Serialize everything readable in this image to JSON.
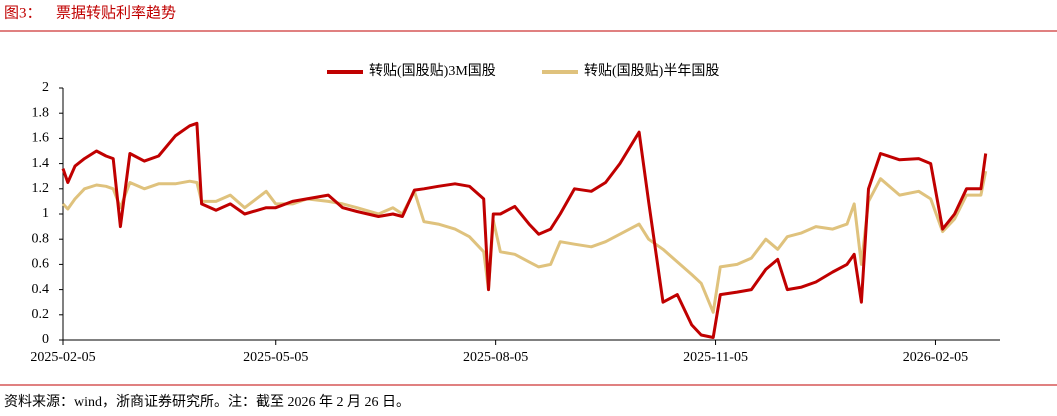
{
  "chart_data": {
    "type": "line",
    "figure_label": "图3：",
    "title": "票据转贴利率趋势",
    "source": "资料来源：wind，浙商证券研究所。注：截至 2026 年 2 月 26 日。",
    "x": [
      "2025-02-05",
      "2025-02-07",
      "2025-02-10",
      "2025-02-14",
      "2025-02-19",
      "2025-02-23",
      "2025-02-26",
      "2025-03-01",
      "2025-03-05",
      "2025-03-11",
      "2025-03-17",
      "2025-03-24",
      "2025-03-30",
      "2025-04-02",
      "2025-04-04",
      "2025-04-10",
      "2025-04-16",
      "2025-04-22",
      "2025-05-01",
      "2025-05-05",
      "2025-05-12",
      "2025-05-18",
      "2025-05-27",
      "2025-06-02",
      "2025-06-08",
      "2025-06-17",
      "2025-06-23",
      "2025-06-27",
      "2025-07-02",
      "2025-07-06",
      "2025-07-12",
      "2025-07-19",
      "2025-07-25",
      "2025-07-31",
      "2025-08-02",
      "2025-08-04",
      "2025-08-07",
      "2025-08-13",
      "2025-08-19",
      "2025-08-23",
      "2025-08-28",
      "2025-09-01",
      "2025-09-07",
      "2025-09-14",
      "2025-09-20",
      "2025-09-26",
      "2025-10-04",
      "2025-10-08",
      "2025-10-14",
      "2025-10-20",
      "2025-10-26",
      "2025-10-30",
      "2025-11-04",
      "2025-11-07",
      "2025-11-14",
      "2025-11-20",
      "2025-11-26",
      "2025-12-01",
      "2025-12-05",
      "2025-12-11",
      "2025-12-17",
      "2025-12-24",
      "2025-12-30",
      "2026-01-02",
      "2026-01-05",
      "2026-01-08",
      "2026-01-13",
      "2026-01-21",
      "2026-01-29",
      "2026-02-03",
      "2026-02-08",
      "2026-02-13",
      "2026-02-18",
      "2026-02-20",
      "2026-02-24",
      "2026-02-26"
    ],
    "series": [
      {
        "name": "转贴(国股贴)3M国股",
        "color": "#c00000",
        "values": [
          1.36,
          1.25,
          1.38,
          1.44,
          1.5,
          1.46,
          1.44,
          0.9,
          1.48,
          1.42,
          1.46,
          1.62,
          1.7,
          1.72,
          1.08,
          1.03,
          1.08,
          1.0,
          1.05,
          1.05,
          1.1,
          1.12,
          1.15,
          1.05,
          1.02,
          0.98,
          1.0,
          0.98,
          1.19,
          1.2,
          1.22,
          1.24,
          1.22,
          1.12,
          0.4,
          1.0,
          1.0,
          1.06,
          0.92,
          0.84,
          0.88,
          1.0,
          1.2,
          1.18,
          1.25,
          1.4,
          1.65,
          1.1,
          0.3,
          0.36,
          0.12,
          0.04,
          0.02,
          0.36,
          0.38,
          0.4,
          0.56,
          0.64,
          0.4,
          0.42,
          0.46,
          0.54,
          0.6,
          0.68,
          0.3,
          1.2,
          1.48,
          1.43,
          1.44,
          1.4,
          0.88,
          1.0,
          1.2,
          1.2,
          1.2,
          1.48
        ]
      },
      {
        "name": "转贴(国股贴)半年国股",
        "color": "#dfc27d",
        "values": [
          1.08,
          1.04,
          1.12,
          1.2,
          1.23,
          1.22,
          1.2,
          1.05,
          1.25,
          1.2,
          1.24,
          1.24,
          1.26,
          1.25,
          1.1,
          1.1,
          1.15,
          1.05,
          1.18,
          1.08,
          1.08,
          1.12,
          1.1,
          1.08,
          1.05,
          1.0,
          1.05,
          1.0,
          1.18,
          0.94,
          0.92,
          0.88,
          0.82,
          0.7,
          0.4,
          0.95,
          0.7,
          0.68,
          0.62,
          0.58,
          0.6,
          0.78,
          0.76,
          0.74,
          0.78,
          0.84,
          0.92,
          0.8,
          0.72,
          0.62,
          0.52,
          0.45,
          0.22,
          0.58,
          0.6,
          0.65,
          0.8,
          0.72,
          0.82,
          0.85,
          0.9,
          0.88,
          0.92,
          1.08,
          0.6,
          1.1,
          1.28,
          1.15,
          1.18,
          1.12,
          0.86,
          0.96,
          1.15,
          1.15,
          1.15,
          1.34
        ]
      }
    ],
    "xlim": [
      "2025-02-05",
      "2026-03-04"
    ],
    "xticks": [
      "2025-02-05",
      "2025-05-05",
      "2025-08-05",
      "2025-11-05",
      "2026-02-05"
    ],
    "ylim": [
      0,
      2
    ],
    "yticks": [
      0,
      0.2,
      0.4,
      0.6,
      0.8,
      1,
      1.2,
      1.4,
      1.6,
      1.8,
      2
    ],
    "grid": false,
    "legend": "top"
  }
}
